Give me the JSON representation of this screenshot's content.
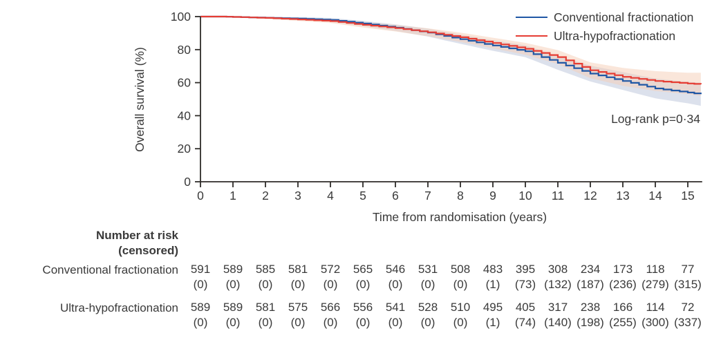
{
  "chart_data": {
    "type": "line",
    "subtype": "kaplan-meier-step",
    "title": "",
    "xlabel": "Time from randomisation (years)",
    "ylabel": "Overall survival (%)",
    "annotation": "Log-rank p=0·34",
    "xlim": [
      0,
      15.4
    ],
    "ylim": [
      0,
      100
    ],
    "xticks": [
      0,
      1,
      2,
      3,
      4,
      5,
      6,
      7,
      8,
      9,
      10,
      11,
      12,
      13,
      14,
      15
    ],
    "yticks": [
      0,
      20,
      40,
      60,
      80,
      100
    ],
    "grid": false,
    "legend_position": "top-right",
    "axis_color": "#2e2b28",
    "x": [
      0,
      0.6,
      1,
      2,
      3,
      4,
      5,
      6,
      7,
      8,
      9,
      10,
      11,
      12,
      13,
      14,
      15,
      15.4
    ],
    "series": [
      {
        "name": "Conventional fractionation",
        "color": "#1f57a5",
        "band_color": "#b9c3d9",
        "values": [
          100,
          100,
          99.8,
          99.3,
          98.8,
          98.0,
          95.8,
          93.3,
          90.3,
          86.3,
          82.5,
          79.0,
          72.0,
          65.5,
          61.0,
          56.5,
          54.0,
          53.0
        ],
        "ci_halfwidth": [
          0,
          0.2,
          0.3,
          0.6,
          0.9,
          1.2,
          1.6,
          2.0,
          2.4,
          2.8,
          3.2,
          3.6,
          4.2,
          4.8,
          5.4,
          6.0,
          6.5,
          7.0
        ]
      },
      {
        "name": "Ultra-hypofractionation",
        "color": "#e63c33",
        "band_color": "#f6cdb6",
        "values": [
          100,
          100,
          99.8,
          99.2,
          98.3,
          97.3,
          95.0,
          93.0,
          90.5,
          87.5,
          84.0,
          80.5,
          75.5,
          67.5,
          63.5,
          61.0,
          59.5,
          59.0
        ],
        "ci_halfwidth": [
          0,
          0.2,
          0.3,
          0.6,
          0.9,
          1.2,
          1.6,
          2.0,
          2.4,
          2.8,
          3.2,
          3.6,
          4.2,
          4.8,
          5.4,
          6.0,
          6.5,
          7.0
        ]
      }
    ]
  },
  "risk_table": {
    "header_line1": "Number at risk",
    "header_line2": "(censored)",
    "rows": [
      {
        "label": "Conventional fractionation",
        "counts": [
          591,
          589,
          585,
          581,
          572,
          565,
          546,
          531,
          508,
          483,
          395,
          308,
          234,
          173,
          118,
          77
        ],
        "censored": [
          0,
          0,
          0,
          0,
          0,
          0,
          0,
          0,
          0,
          1,
          73,
          132,
          187,
          236,
          279,
          315
        ]
      },
      {
        "label": "Ultra-hypofractionation",
        "counts": [
          589,
          589,
          581,
          575,
          566,
          556,
          541,
          528,
          510,
          495,
          405,
          317,
          238,
          166,
          114,
          72
        ],
        "censored": [
          0,
          0,
          0,
          0,
          0,
          0,
          0,
          0,
          0,
          1,
          74,
          140,
          198,
          255,
          300,
          337
        ]
      }
    ]
  }
}
